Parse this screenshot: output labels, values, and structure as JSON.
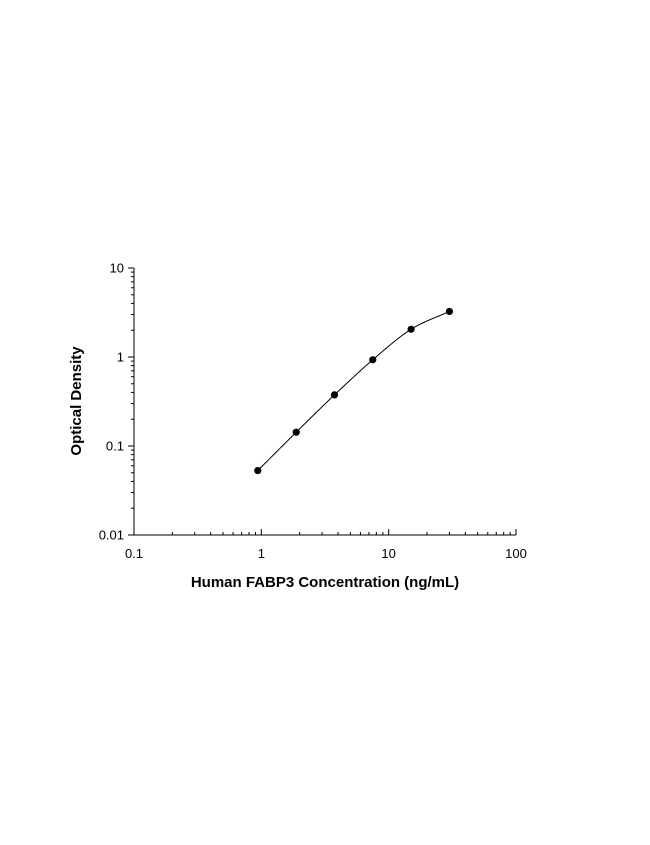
{
  "chart_data": {
    "type": "scatter",
    "title": "",
    "xlabel": "Human FABP3 Concentration (ng/mL)",
    "ylabel": "Optical Density",
    "x_scale": "log",
    "y_scale": "log",
    "xlim": [
      0.1,
      100
    ],
    "ylim": [
      0.01,
      10
    ],
    "x_ticks": [
      "0.1",
      "1",
      "10",
      "100"
    ],
    "y_ticks": [
      "10",
      "1",
      "0.1",
      "0.01"
    ],
    "grid": false,
    "legend": "none",
    "series": [
      {
        "x": [
          0.938,
          1.88,
          3.75,
          7.5,
          15,
          30
        ],
        "y": [
          0.053,
          0.143,
          0.375,
          0.93,
          2.05,
          3.25
        ],
        "fit_curve": true
      }
    ],
    "colors": {
      "marker": "#000000",
      "curve": "#000000",
      "axis": "#000000"
    }
  }
}
